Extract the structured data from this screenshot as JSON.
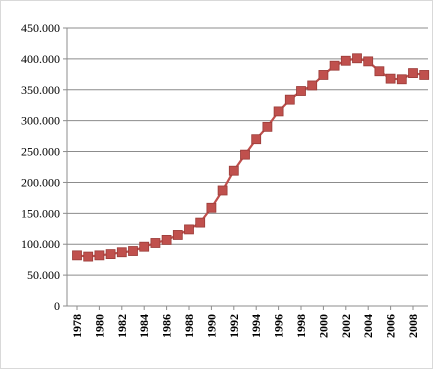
{
  "chart_data": {
    "type": "line",
    "title": "",
    "xlabel": "",
    "ylabel": "",
    "ylim": [
      0,
      450000
    ],
    "y_ticks": [
      "0",
      "50.000",
      "100.000",
      "150.000",
      "200.000",
      "250.000",
      "300.000",
      "350.000",
      "400.000",
      "450.000"
    ],
    "x_tick_labels": [
      "1978",
      "1980",
      "1982",
      "1984",
      "1986",
      "1988",
      "1990",
      "1992",
      "1994",
      "1996",
      "1998",
      "2000",
      "2002",
      "2004",
      "2006",
      "2008"
    ],
    "grid": true,
    "legend": "none",
    "series": [
      {
        "color": "#c0504d",
        "marker": "square",
        "x": [
          1978,
          1979,
          1980,
          1981,
          1982,
          1983,
          1984,
          1985,
          1986,
          1987,
          1988,
          1989,
          1990,
          1991,
          1992,
          1993,
          1994,
          1995,
          1996,
          1997,
          1998,
          1999,
          2000,
          2001,
          2002,
          2003,
          2004,
          2005,
          2006,
          2007,
          2008,
          2009
        ],
        "values": [
          82000,
          80000,
          82000,
          84000,
          87000,
          89000,
          96000,
          102000,
          107000,
          115000,
          124000,
          135000,
          159000,
          187000,
          219000,
          245000,
          270000,
          290000,
          315000,
          334000,
          348000,
          357000,
          374000,
          389000,
          397000,
          401000,
          396000,
          380000,
          368000,
          367000,
          377000,
          374000
        ]
      }
    ]
  }
}
